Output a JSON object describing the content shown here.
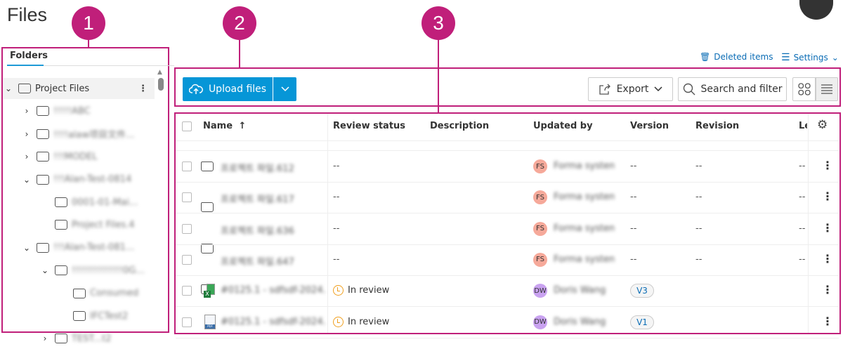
{
  "page_title": "Files",
  "callouts": [
    "1",
    "2",
    "3"
  ],
  "colors": {
    "callout": "#c01f7a",
    "primary": "#0696d7",
    "link": "#0a6cb5",
    "fs_avatar": "#f6a99a",
    "dw_avatar": "#c9a2f0"
  },
  "folders": {
    "tab": "Folders",
    "items": [
      {
        "label": "Project Files",
        "expanded": true,
        "level": 0,
        "selected": true
      },
      {
        "label": "!!!!!ABC",
        "expanded": false,
        "level": 1
      },
      {
        "label": "!!!!alaw项目文件...",
        "expanded": false,
        "level": 1
      },
      {
        "label": "!!!MODEL",
        "expanded": false,
        "level": 1
      },
      {
        "label": "!!!Alan-Test-0814",
        "expanded": true,
        "level": 1
      },
      {
        "label": "0001-01-Mai...",
        "level": 2
      },
      {
        "label": "Project Files.4",
        "level": 2
      },
      {
        "label": "!!!Alan-Test-081...",
        "expanded": true,
        "level": 1
      },
      {
        "label": "!!!!!!!!!!!!!!0G...",
        "expanded": true,
        "level": 2
      },
      {
        "label": "Consumed",
        "level": 3
      },
      {
        "label": "IFCTest2",
        "level": 3
      },
      {
        "label": "TEST...t2",
        "expanded": false,
        "level": 2
      }
    ]
  },
  "top_links": {
    "deleted": "Deleted items",
    "settings": "Settings"
  },
  "toolbar": {
    "upload": "Upload files",
    "export": "Export",
    "search": "Search and filter"
  },
  "table": {
    "columns": [
      "Name",
      "Review status",
      "Description",
      "Updated by",
      "Version",
      "Revision",
      "Le"
    ],
    "rows": [
      {
        "type": "folder",
        "name": "프로젝트 파일.612",
        "review": "--",
        "initials": "FS",
        "updated_by": "Forma system",
        "version": "--",
        "revision": "--",
        "last": "--"
      },
      {
        "type": "folder",
        "name": "프로젝트 파일.617",
        "review": "--",
        "initials": "FS",
        "updated_by": "Forma system",
        "version": "--",
        "revision": "--",
        "last": "--"
      },
      {
        "type": "folder",
        "name": "프로젝트 파일.636",
        "review": "--",
        "initials": "FS",
        "updated_by": "Forma system",
        "version": "--",
        "revision": "--",
        "last": "--"
      },
      {
        "type": "folder",
        "name": "프로젝트 파일.647",
        "review": "--",
        "initials": "FS",
        "updated_by": "Forma system",
        "version": "--",
        "revision": "--",
        "last": "--"
      },
      {
        "type": "excel",
        "name": "#0125.1 - sdfsdf-2024...",
        "review": "In review",
        "initials": "DW",
        "updated_by": "Doris Wang",
        "version": "V3",
        "revision": "",
        "last": ""
      },
      {
        "type": "pdf",
        "name": "#0125.1 - sdfsdf-2024...",
        "review": "In review",
        "initials": "DW",
        "updated_by": "Doris Wang",
        "version": "V1",
        "revision": "",
        "last": ""
      }
    ]
  }
}
